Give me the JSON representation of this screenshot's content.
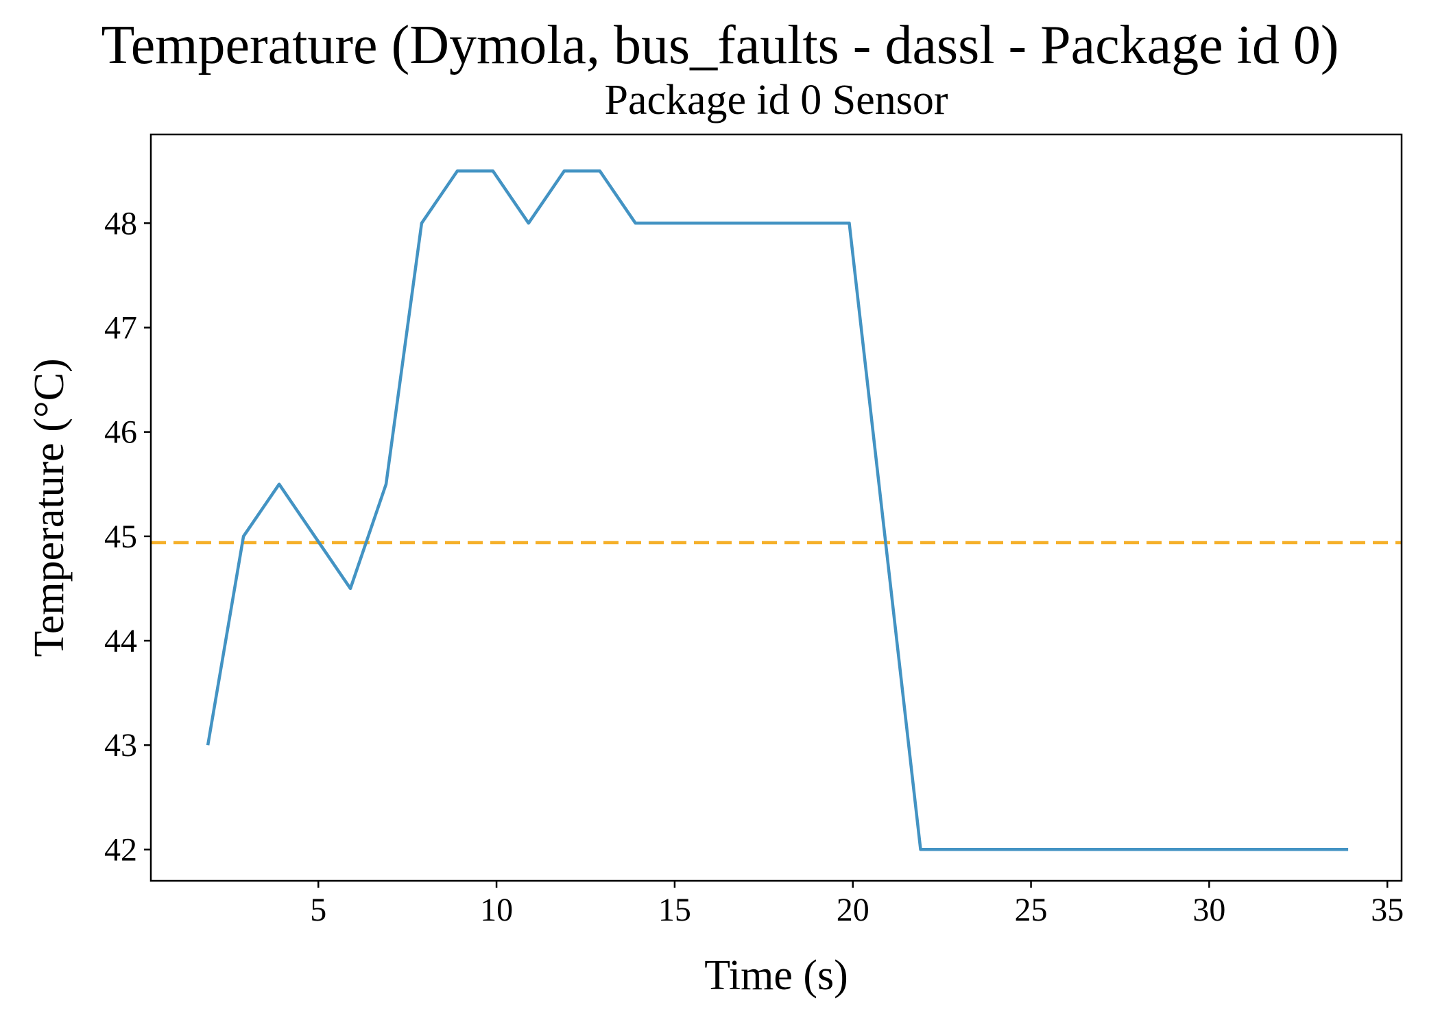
{
  "figure": {
    "title": "Temperature (Dymola, bus_faults - dassl - Package id 0)"
  },
  "chart_data": {
    "type": "line",
    "title": "Package id 0 Sensor",
    "xlabel": "Time (s)",
    "ylabel": "Temperature (°C)",
    "xlim": [
      0.3,
      35.4
    ],
    "ylim": [
      41.7,
      48.85
    ],
    "xticks": [
      5,
      10,
      15,
      20,
      25,
      30,
      35
    ],
    "yticks": [
      42,
      43,
      44,
      45,
      46,
      47,
      48
    ],
    "grid": false,
    "legend": "none",
    "series": [
      {
        "color": "#4393c3",
        "style": "solid",
        "x": [
          1.9,
          2.9,
          3.9,
          4.9,
          5.9,
          6.9,
          7.9,
          8.9,
          9.9,
          10.9,
          11.9,
          12.9,
          13.9,
          14.9,
          15.9,
          16.9,
          17.9,
          18.9,
          19.9,
          20.9,
          21.9,
          22.9,
          23.9,
          24.9,
          25.9,
          26.9,
          27.9,
          28.9,
          29.9,
          30.9,
          31.9,
          32.9,
          33.9
        ],
        "y": [
          43,
          45,
          45.5,
          45,
          44.5,
          45.5,
          48,
          48.5,
          48.5,
          48,
          48.5,
          48.5,
          48,
          48,
          48,
          48,
          48,
          48,
          48,
          45,
          42,
          42,
          42,
          42,
          42,
          42,
          42,
          42,
          42,
          42,
          42,
          42,
          42
        ]
      }
    ],
    "reference_lines": [
      {
        "orientation": "horizontal",
        "y": 44.94,
        "color": "#f5b02a",
        "style": "dashed"
      }
    ]
  }
}
